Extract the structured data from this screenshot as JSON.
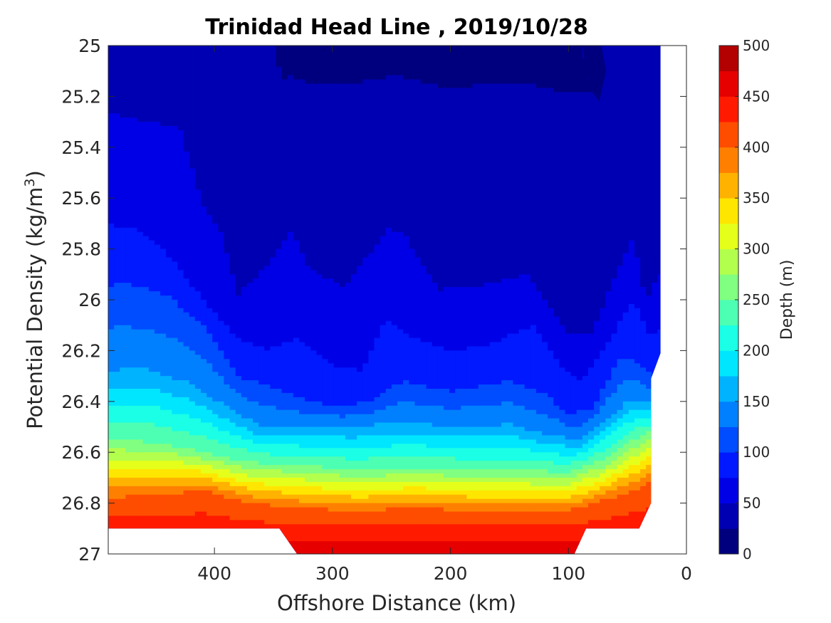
{
  "chart_data": {
    "type": "heatmap",
    "subtype": "filled-contour",
    "title": "Trinidad Head Line , 2019/10/28",
    "xlabel": "Offshore Distance (km)",
    "ylabel": "Potential Density (kg/m³)",
    "ylabel_parts": {
      "base": "Potential Density (kg/m",
      "superscript": "3",
      "suffix": ")"
    },
    "x_axis_reversed": true,
    "y_axis_reversed": true,
    "xlim": [
      0,
      490
    ],
    "ylim": [
      25,
      27
    ],
    "xticks": [
      400,
      300,
      200,
      100,
      0
    ],
    "xtick_labels": [
      "400",
      "300",
      "200",
      "100",
      "0"
    ],
    "yticks": [
      25,
      25.2,
      25.4,
      25.6,
      25.8,
      26,
      26.2,
      26.4,
      26.6,
      26.8,
      27
    ],
    "ytick_labels": [
      "25",
      "25.2",
      "25.4",
      "25.6",
      "25.8",
      "26",
      "26.2",
      "26.4",
      "26.6",
      "26.8",
      "27"
    ],
    "grid": false,
    "colorbar": {
      "label": "Depth (m)",
      "colormap": "jet",
      "range": [
        0,
        500
      ],
      "levels": [
        0,
        25,
        50,
        75,
        100,
        125,
        150,
        175,
        200,
        225,
        250,
        275,
        300,
        325,
        350,
        375,
        400,
        425,
        450,
        475,
        500
      ],
      "ticks": [
        0,
        50,
        100,
        150,
        200,
        250,
        300,
        350,
        400,
        450,
        500
      ],
      "tick_labels": [
        "0",
        "50",
        "100",
        "150",
        "200",
        "250",
        "300",
        "350",
        "400",
        "450",
        "500"
      ],
      "colors": [
        "#00007f",
        "#0000b3",
        "#0000e6",
        "#0019ff",
        "#004cff",
        "#0080ff",
        "#00b3ff",
        "#00e6ff",
        "#1affe6",
        "#4dffb3",
        "#80ff80",
        "#b3ff4d",
        "#e6ff1a",
        "#ffe600",
        "#ffb300",
        "#ff8000",
        "#ff4d00",
        "#ff1a00",
        "#e60000",
        "#b30000"
      ]
    },
    "depth_contours": [
      {
        "depth": 25,
        "points": [
          [
            420,
            25
          ],
          [
            350,
            25
          ],
          [
            338,
            25.2
          ],
          [
            324,
            25.36
          ],
          [
            300,
            25.5
          ],
          [
            270,
            25.2
          ],
          [
            252,
            25.14
          ],
          [
            220,
            25.34
          ],
          [
            200,
            25.6
          ],
          [
            175,
            25.63
          ],
          [
            140,
            25.47
          ],
          [
            100,
            25.7
          ],
          [
            85,
            25.75
          ],
          [
            72,
            25.7
          ],
          [
            60,
            25.55
          ],
          [
            55,
            25.35
          ],
          [
            70,
            25.24
          ],
          [
            80,
            25.15
          ],
          [
            88,
            25.0
          ]
        ]
      },
      {
        "depth": 50,
        "points": [
          [
            500,
            25.25
          ],
          [
            460,
            25.3
          ],
          [
            430,
            25.32
          ],
          [
            408,
            25.65
          ],
          [
            393,
            25.75
          ],
          [
            380,
            25.98
          ],
          [
            350,
            25.84
          ],
          [
            335,
            25.73
          ],
          [
            320,
            25.88
          ],
          [
            290,
            25.95
          ],
          [
            252,
            25.72
          ],
          [
            240,
            25.74
          ],
          [
            210,
            25.96
          ],
          [
            180,
            25.95
          ],
          [
            135,
            25.9
          ],
          [
            100,
            26.13
          ],
          [
            80,
            26.13
          ],
          [
            60,
            25.9
          ],
          [
            45,
            25.75
          ],
          [
            35,
            26.0
          ],
          [
            22,
            25.9
          ],
          [
            22,
            25.0
          ]
        ]
      },
      {
        "depth": 75,
        "points": [
          [
            500,
            25.7
          ],
          [
            465,
            25.72
          ],
          [
            435,
            25.84
          ],
          [
            410,
            26.0
          ],
          [
            380,
            26.15
          ],
          [
            355,
            26.2
          ],
          [
            330,
            26.15
          ],
          [
            300,
            26.26
          ],
          [
            275,
            26.28
          ],
          [
            255,
            26.08
          ],
          [
            235,
            26.14
          ],
          [
            200,
            26.2
          ],
          [
            170,
            26.18
          ],
          [
            130,
            26.1
          ],
          [
            110,
            26.24
          ],
          [
            90,
            26.32
          ],
          [
            70,
            26.2
          ],
          [
            45,
            26.0
          ],
          [
            30,
            26.15
          ],
          [
            22,
            26.12
          ]
        ]
      },
      {
        "depth": 100,
        "points": [
          [
            500,
            25.97
          ],
          [
            480,
            25.93
          ],
          [
            440,
            25.98
          ],
          [
            410,
            26.1
          ],
          [
            380,
            26.3
          ],
          [
            350,
            26.35
          ],
          [
            320,
            26.4
          ],
          [
            290,
            26.42
          ],
          [
            270,
            26.4
          ],
          [
            240,
            26.32
          ],
          [
            200,
            26.36
          ],
          [
            150,
            26.32
          ],
          [
            120,
            26.37
          ],
          [
            100,
            26.45
          ],
          [
            80,
            26.43
          ],
          [
            55,
            26.22
          ],
          [
            40,
            26.25
          ],
          [
            30,
            26.3
          ]
        ]
      },
      {
        "depth": 150,
        "points": [
          [
            500,
            26.28
          ],
          [
            460,
            26.27
          ],
          [
            420,
            26.33
          ],
          [
            390,
            26.42
          ],
          [
            360,
            26.5
          ],
          [
            320,
            26.5
          ],
          [
            280,
            26.5
          ],
          [
            240,
            26.48
          ],
          [
            200,
            26.5
          ],
          [
            150,
            26.49
          ],
          [
            120,
            26.53
          ],
          [
            90,
            26.55
          ],
          [
            70,
            26.48
          ],
          [
            50,
            26.4
          ],
          [
            30,
            26.4
          ]
        ]
      },
      {
        "depth": 250,
        "points": [
          [
            500,
            26.55
          ],
          [
            450,
            26.56
          ],
          [
            410,
            26.6
          ],
          [
            370,
            26.64
          ],
          [
            330,
            26.65
          ],
          [
            280,
            26.67
          ],
          [
            230,
            26.66
          ],
          [
            180,
            26.67
          ],
          [
            140,
            26.67
          ],
          [
            100,
            26.68
          ],
          [
            70,
            26.63
          ],
          [
            45,
            26.55
          ],
          [
            30,
            26.52
          ]
        ]
      },
      {
        "depth": 400,
        "points": [
          [
            500,
            26.78
          ],
          [
            450,
            26.77
          ],
          [
            410,
            26.75
          ],
          [
            370,
            26.8
          ],
          [
            330,
            26.82
          ],
          [
            280,
            26.83
          ],
          [
            230,
            26.82
          ],
          [
            180,
            26.83
          ],
          [
            130,
            26.83
          ],
          [
            100,
            26.83
          ],
          [
            70,
            26.79
          ],
          [
            45,
            26.75
          ],
          [
            30,
            26.72
          ]
        ]
      }
    ],
    "data_coverage_boundary": [
      [
        490,
        26.9
      ],
      [
        345,
        26.9
      ],
      [
        330,
        27
      ],
      [
        95,
        27
      ],
      [
        85,
        26.9
      ],
      [
        40,
        26.9
      ],
      [
        30,
        26.8
      ],
      [
        30,
        26.31
      ],
      [
        22,
        26.21
      ],
      [
        22,
        25
      ]
    ]
  }
}
